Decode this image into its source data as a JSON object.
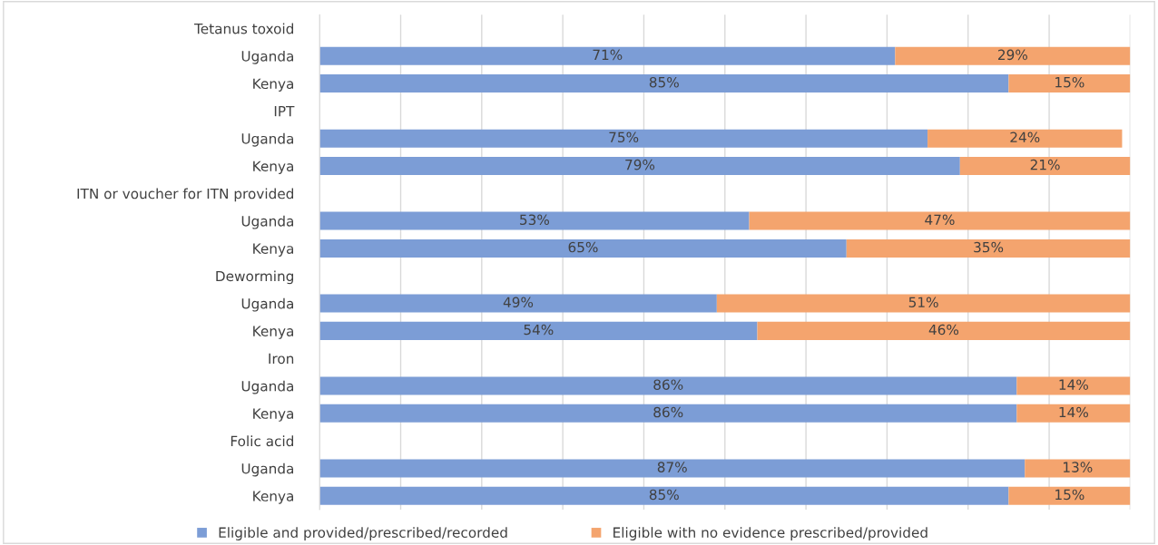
{
  "chart_data": {
    "type": "bar",
    "orientation": "horizontal",
    "stacked": true,
    "grid": "x",
    "legend": "bottom",
    "categories": [
      "Tetanus toxoid",
      "Uganda",
      "Kenya",
      "IPT",
      "Uganda",
      "Kenya",
      "ITN or voucher for ITN provided",
      "Uganda",
      "Kenya",
      "Deworming",
      "Uganda",
      "Kenya",
      "Iron",
      "Uganda",
      "Kenya",
      "Folic acid",
      "Uganda",
      "Kenya"
    ],
    "tick_labels": "y",
    "series": [
      {
        "name": "Eligible and provided/prescribed/recorded",
        "color": "#7c9dd6",
        "values": [
          null,
          71,
          85,
          null,
          75,
          79,
          null,
          53,
          65,
          null,
          49,
          54,
          null,
          86,
          86,
          null,
          87,
          85
        ],
        "value_labels": [
          null,
          "71%",
          "85%",
          null,
          "75%",
          "79%",
          null,
          "53%",
          "65%",
          null,
          "49%",
          "54%",
          null,
          "86%",
          "86%",
          null,
          "87%",
          "85%"
        ]
      },
      {
        "name": "Eligible with no evidence prescribed/provided",
        "color": "#f4a46e",
        "values": [
          null,
          29,
          15,
          null,
          24,
          21,
          null,
          47,
          35,
          null,
          51,
          46,
          null,
          14,
          14,
          null,
          13,
          15
        ],
        "value_labels": [
          null,
          "29%",
          "15%",
          null,
          "24%",
          "21%",
          null,
          "47%",
          "35%",
          null,
          "51%",
          "46%",
          null,
          "14%",
          "14%",
          null,
          "13%",
          "15%"
        ]
      }
    ]
  }
}
